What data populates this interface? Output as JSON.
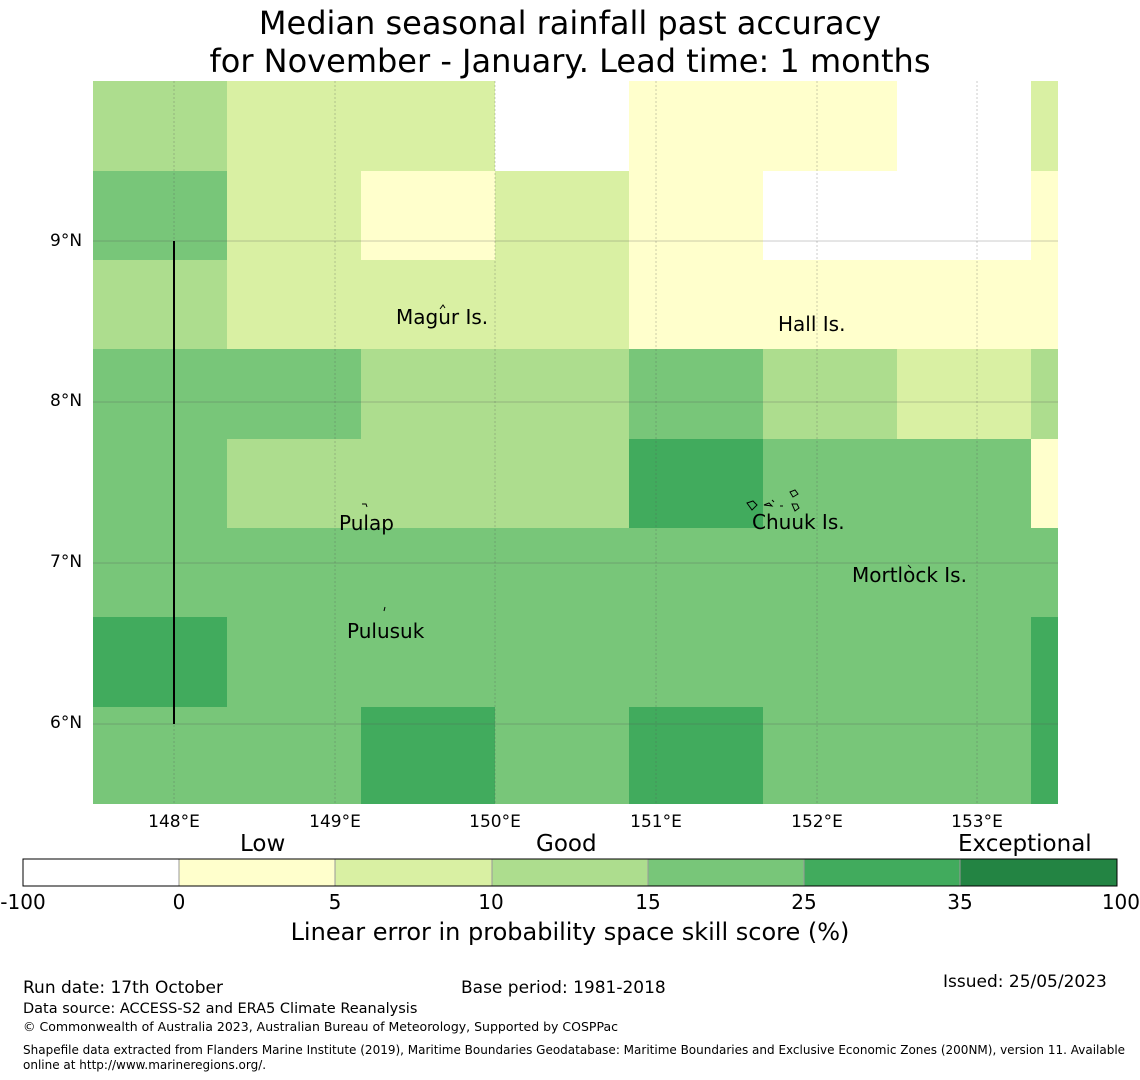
{
  "title": {
    "line1": "Median seasonal rainfall past accuracy",
    "line2": "for November - January. Lead time: 1 months"
  },
  "map": {
    "lat_labels": [
      "9°N",
      "8°N",
      "7°N",
      "6°N"
    ],
    "lon_labels": [
      "148°E",
      "149°E",
      "150°E",
      "151°E",
      "152°E",
      "153°E"
    ],
    "grid_rows": [
      [
        3,
        2,
        2,
        0,
        1,
        1,
        0,
        2
      ],
      [
        4,
        2,
        1,
        2,
        1,
        0,
        0,
        1
      ],
      [
        3,
        2,
        2,
        2,
        1,
        1,
        1,
        1
      ],
      [
        4,
        4,
        3,
        3,
        4,
        3,
        2,
        3
      ],
      [
        4,
        3,
        3,
        3,
        5,
        4,
        4,
        1
      ],
      [
        4,
        4,
        4,
        4,
        4,
        4,
        4,
        4
      ],
      [
        5,
        4,
        4,
        4,
        4,
        4,
        4,
        5
      ],
      [
        4,
        4,
        5,
        4,
        5,
        4,
        4,
        5
      ]
    ],
    "places": [
      {
        "name": "Magur Is."
      },
      {
        "name": "Hall Is."
      },
      {
        "name": "Pulap"
      },
      {
        "name": "Chuuk Is."
      },
      {
        "name": "Mortlock Is."
      },
      {
        "name": "Pulusuk"
      }
    ]
  },
  "legend": {
    "categories": [
      "Low",
      "Good",
      "Exceptional"
    ],
    "ticks": [
      "-100",
      "0",
      "5",
      "10",
      "15",
      "25",
      "35",
      "100"
    ],
    "colors": [
      "#ffffff",
      "#ffffcc",
      "#d9f0a3",
      "#addd8e",
      "#78c679",
      "#41ab5d",
      "#238443"
    ],
    "label": "Linear error in probability space skill score (%)"
  },
  "footer": {
    "run_date": "Run date: 17th October",
    "base_period": "Base period: 1981-2018",
    "issued": "Issued: 25/05/2023",
    "data_source": "Data source: ACCESS-S2 and ERA5 Climate Reanalysis",
    "copyright": "© Commonwealth of Australia 2023, Australian Bureau of Meteorology, Supported by COSPPac",
    "shapefile_line1": "Shapefile data extracted from Flanders Marine Institute (2019), Maritime Boundaries Geodatabase: Maritime Boundaries and Exclusive Economic Zones (200NM), version 11. Available",
    "shapefile_line2": "online at http://www.marineregions.org/."
  }
}
